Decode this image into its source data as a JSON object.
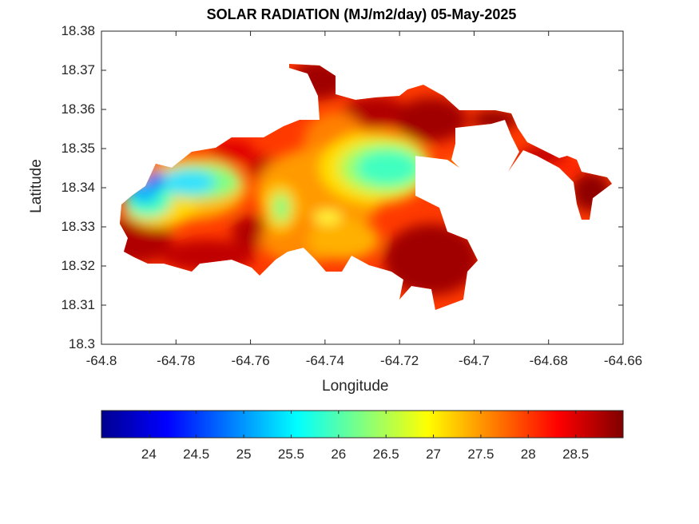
{
  "title": "SOLAR RADIATION (MJ/m2/day) 05-May-2025",
  "xlabel": "Longitude",
  "ylabel": "Latitude",
  "x_ticks": [
    "-64.8",
    "-64.78",
    "-64.76",
    "-64.74",
    "-64.72",
    "-64.7",
    "-64.68",
    "-64.66"
  ],
  "y_ticks": [
    "18.3",
    "18.31",
    "18.32",
    "18.33",
    "18.34",
    "18.35",
    "18.36",
    "18.37",
    "18.38"
  ],
  "colorbar_ticks": [
    "24",
    "24.5",
    "25",
    "25.5",
    "26",
    "26.5",
    "27",
    "27.5",
    "28",
    "28.5"
  ],
  "colormap": "jet",
  "colors": {
    "low": "#00008f",
    "mid": "#80ff80",
    "high": "#800000",
    "axis": "#262626"
  },
  "chart_data": {
    "type": "heatmap",
    "title": "SOLAR RADIATION (MJ/m2/day) 05-May-2025",
    "xlabel": "Longitude",
    "ylabel": "Latitude",
    "xlim": [
      -64.8,
      -64.66
    ],
    "ylim": [
      18.3,
      18.38
    ],
    "clim": [
      23.5,
      29.0
    ],
    "grid": false,
    "colorbar": "bottom",
    "regions": [
      {
        "name": "west tip low",
        "lon": -64.786,
        "lat": 18.339,
        "value": 24.0
      },
      {
        "name": "west band",
        "lon": -64.778,
        "lat": 18.34,
        "value": 25.6
      },
      {
        "name": "west-central band",
        "lon": -64.768,
        "lat": 18.341,
        "value": 26.2
      },
      {
        "name": "central pocket",
        "lon": -64.751,
        "lat": 18.335,
        "value": 26.4
      },
      {
        "name": "north-central high cloudless",
        "lon": -64.761,
        "lat": 18.349,
        "value": 28.0
      },
      {
        "name": "east-central band",
        "lon": -64.728,
        "lat": 18.344,
        "value": 25.8
      },
      {
        "name": "south-central",
        "lon": -64.738,
        "lat": 18.328,
        "value": 27.3
      },
      {
        "name": "southwest coast",
        "lon": -64.782,
        "lat": 18.323,
        "value": 28.7
      },
      {
        "name": "southeast coast",
        "lon": -64.716,
        "lat": 18.32,
        "value": 28.8
      },
      {
        "name": "north peninsula",
        "lon": -64.745,
        "lat": 18.369,
        "value": 28.9
      },
      {
        "name": "northeast",
        "lon": -64.713,
        "lat": 18.359,
        "value": 28.7
      },
      {
        "name": "east tail",
        "lon": -64.671,
        "lat": 18.338,
        "value": 28.8
      },
      {
        "name": "east coast small",
        "lon": -64.707,
        "lat": 18.344,
        "value": 27.0
      }
    ]
  }
}
